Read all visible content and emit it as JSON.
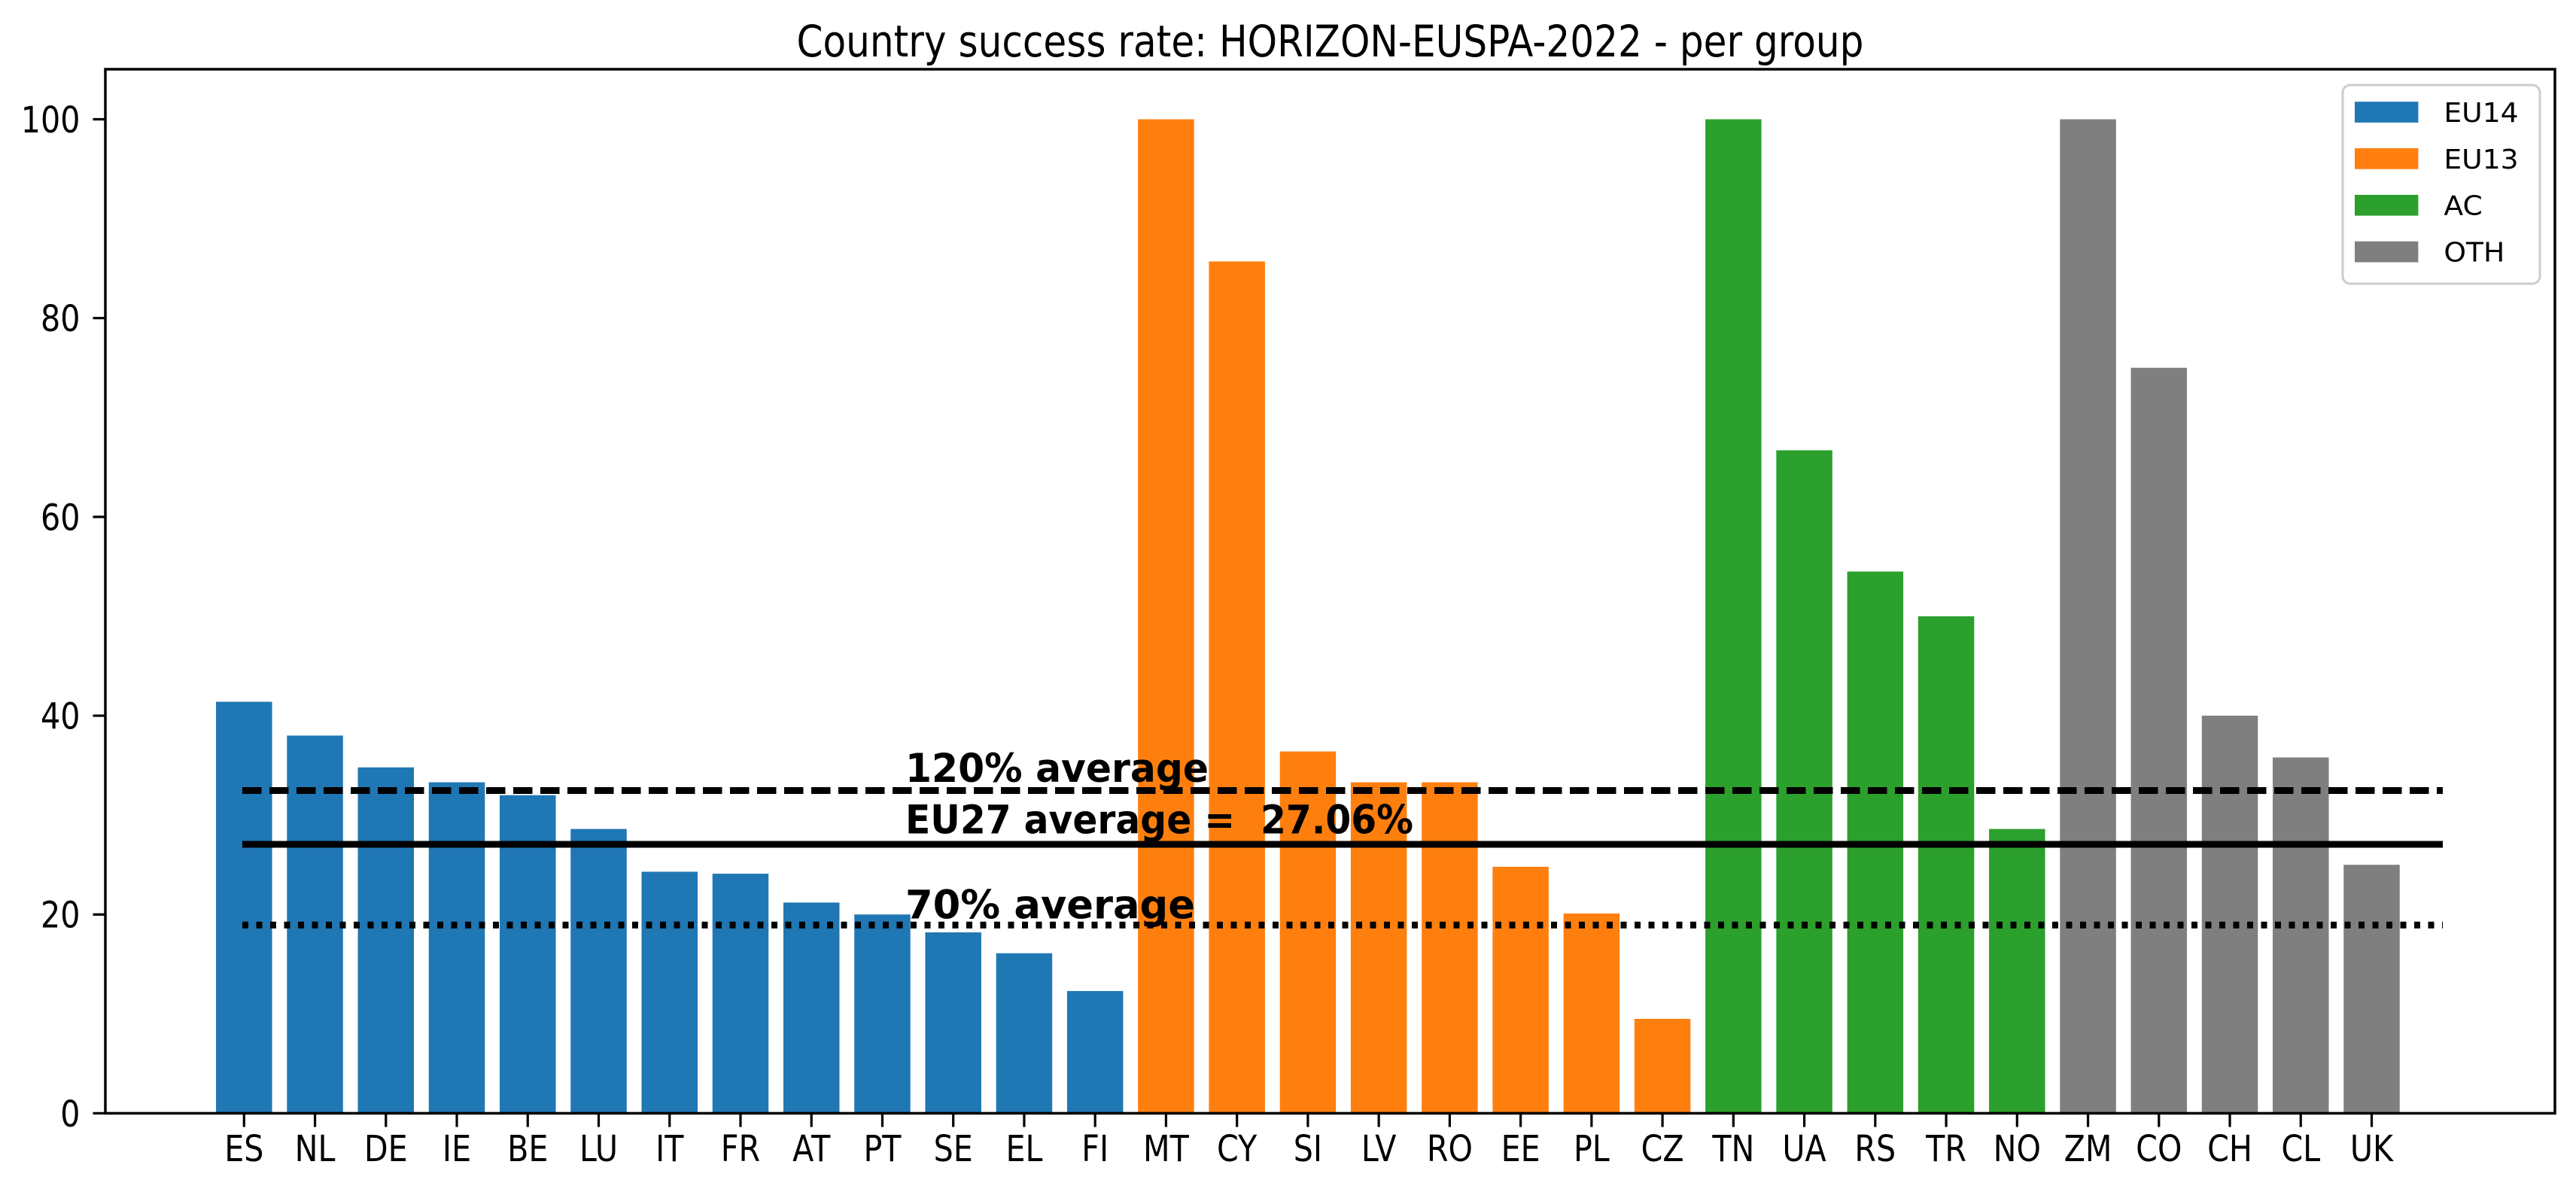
{
  "chart_data": {
    "type": "bar",
    "title": "Country success rate: HORIZON-EUSPA-2022 - per group",
    "xlabel": "",
    "ylabel": "",
    "ylim": [
      0,
      105
    ],
    "yticks": [
      0,
      20,
      40,
      60,
      80,
      100
    ],
    "grid": false,
    "categories": [
      "ES",
      "NL",
      "DE",
      "IE",
      "BE",
      "LU",
      "IT",
      "FR",
      "AT",
      "PT",
      "SE",
      "EL",
      "FI",
      "MT",
      "CY",
      "SI",
      "LV",
      "RO",
      "EE",
      "PL",
      "CZ",
      "TN",
      "UA",
      "RS",
      "TR",
      "NO",
      "ZM",
      "CO",
      "CH",
      "CL",
      "UK"
    ],
    "values": [
      41.4,
      38.0,
      34.8,
      33.3,
      32.0,
      28.6,
      24.3,
      24.1,
      21.2,
      20.0,
      18.2,
      16.1,
      12.3,
      100.0,
      85.7,
      36.4,
      33.3,
      33.3,
      24.8,
      20.1,
      9.5,
      100.0,
      66.7,
      54.5,
      50.0,
      28.6,
      100.0,
      75.0,
      40.0,
      35.8,
      25.0
    ],
    "groups": [
      "EU14",
      "EU14",
      "EU14",
      "EU14",
      "EU14",
      "EU14",
      "EU14",
      "EU14",
      "EU14",
      "EU14",
      "EU14",
      "EU14",
      "EU14",
      "EU13",
      "EU13",
      "EU13",
      "EU13",
      "EU13",
      "EU13",
      "EU13",
      "EU13",
      "AC",
      "AC",
      "AC",
      "AC",
      "AC",
      "OTH",
      "OTH",
      "OTH",
      "OTH",
      "OTH"
    ],
    "series": [
      {
        "name": "EU14",
        "color": "#1f77b4",
        "categories": [
          "ES",
          "NL",
          "DE",
          "IE",
          "BE",
          "LU",
          "IT",
          "FR",
          "AT",
          "PT",
          "SE",
          "EL",
          "FI"
        ],
        "values": [
          41.4,
          38.0,
          34.8,
          33.3,
          32.0,
          28.6,
          24.3,
          24.1,
          21.2,
          20.0,
          18.2,
          16.1,
          12.3
        ]
      },
      {
        "name": "EU13",
        "color": "#ff7f0e",
        "categories": [
          "MT",
          "CY",
          "SI",
          "LV",
          "RO",
          "EE",
          "PL",
          "CZ"
        ],
        "values": [
          100.0,
          85.7,
          36.4,
          33.3,
          33.3,
          24.8,
          20.1,
          9.5
        ]
      },
      {
        "name": "AC",
        "color": "#2ca02c",
        "categories": [
          "TN",
          "UA",
          "RS",
          "TR",
          "NO"
        ],
        "values": [
          100.0,
          66.7,
          54.5,
          50.0,
          28.6
        ]
      },
      {
        "name": "OTH",
        "color": "#7f7f7f",
        "categories": [
          "ZM",
          "CO",
          "CH",
          "CL",
          "UK"
        ],
        "values": [
          100.0,
          75.0,
          40.0,
          35.8,
          25.0
        ]
      }
    ],
    "reference_lines": [
      {
        "style": "dashed",
        "value": 32.47,
        "label": "120% average",
        "color": "#000000"
      },
      {
        "style": "solid",
        "value": 27.06,
        "label": "EU27 average =  27.06%",
        "color": "#000000"
      },
      {
        "style": "dotted",
        "value": 18.94,
        "label": "70% average",
        "color": "#000000"
      }
    ],
    "legend": {
      "position": "upper right",
      "entries": [
        {
          "label": "EU14",
          "color": "#1f77b4"
        },
        {
          "label": "EU13",
          "color": "#ff7f0e"
        },
        {
          "label": "AC",
          "color": "#2ca02c"
        },
        {
          "label": "OTH",
          "color": "#7f7f7f"
        }
      ]
    }
  }
}
